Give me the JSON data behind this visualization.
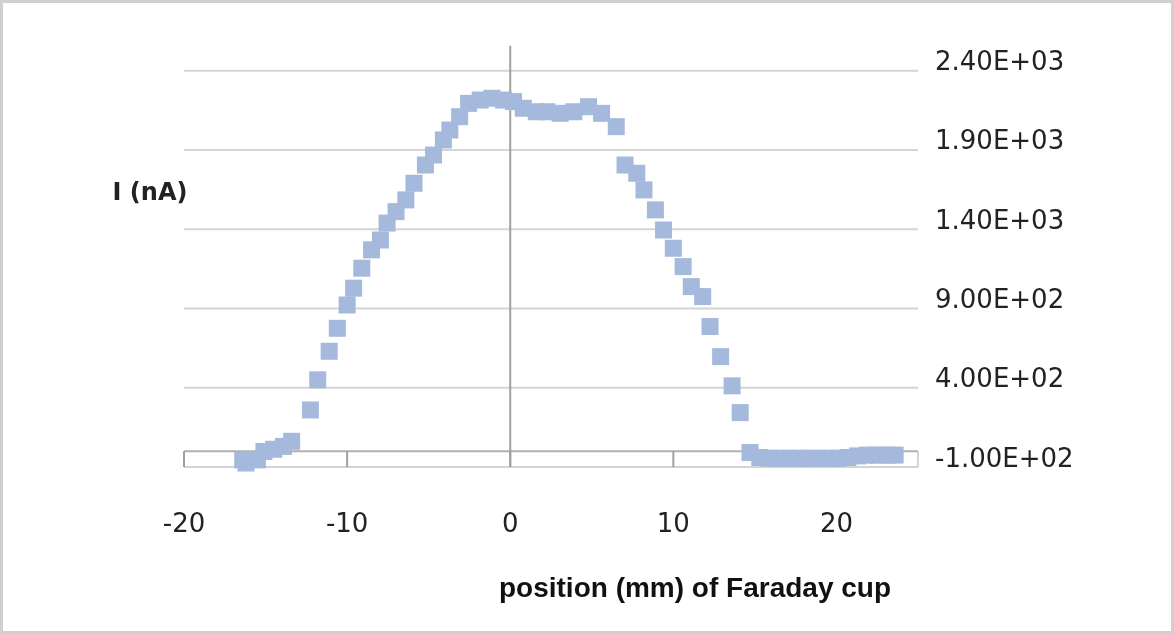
{
  "chart_data": {
    "type": "scatter",
    "xlabel": "position (mm) of Faraday cup",
    "ylabel": "I (nA)",
    "xlim": [
      -20,
      25
    ],
    "xticks": [
      -20,
      -10,
      0,
      10,
      20
    ],
    "ylim": [
      -100,
      2400
    ],
    "yticks": [
      {
        "value": -100,
        "label": "-1.00E+02"
      },
      {
        "value": 400,
        "label": "4.00E+02"
      },
      {
        "value": 900,
        "label": "9.00E+02"
      },
      {
        "value": 1400,
        "label": "1.40E+03"
      },
      {
        "value": 1900,
        "label": "1.90E+03"
      },
      {
        "value": 2400,
        "label": "2.40E+03"
      }
    ],
    "grid": "y",
    "marker": "square",
    "series": [
      {
        "color": "#a5b9dc",
        "x": [
          -16.4,
          -16.2,
          -15.5,
          -15.1,
          -14.5,
          -13.9,
          -13.4,
          -12.25,
          -11.8,
          -11.1,
          -10.6,
          -10.0,
          -9.6,
          -9.1,
          -8.5,
          -7.96,
          -7.55,
          -7.0,
          -6.4,
          -5.9,
          -5.2,
          -4.7,
          -4.1,
          -3.7,
          -3.1,
          -2.55,
          -1.84,
          -1.12,
          -0.41,
          0.2,
          0.8,
          1.6,
          2.25,
          3.06,
          3.9,
          4.8,
          5.6,
          6.5,
          7.04,
          7.76,
          8.2,
          8.9,
          9.4,
          10.0,
          10.6,
          11.1,
          11.8,
          12.25,
          12.9,
          13.6,
          14.1,
          14.7,
          15.3,
          15.9,
          16.5,
          17.1,
          17.7,
          18.3,
          18.9,
          19.5,
          20.1,
          20.7,
          21.3,
          21.9,
          22.5,
          23.1,
          23.6
        ],
        "values": [
          -55,
          -75,
          -55,
          -2,
          12,
          30,
          62,
          260,
          450,
          630,
          775,
          922,
          1028,
          1154,
          1270,
          1332,
          1439,
          1511,
          1585,
          1690,
          1805,
          1868,
          1963,
          2026,
          2110,
          2194,
          2215,
          2226,
          2215,
          2205,
          2163,
          2141,
          2141,
          2131,
          2141,
          2173,
          2131,
          2047,
          1805,
          1753,
          1648,
          1522,
          1395,
          1280,
          1164,
          1038,
          975,
          786,
          596,
          412,
          243,
          -9,
          -40,
          -45,
          -45,
          -45,
          -45,
          -45,
          -45,
          -45,
          -45,
          -40,
          -30,
          -25,
          -25,
          -25,
          -25
        ]
      }
    ]
  }
}
